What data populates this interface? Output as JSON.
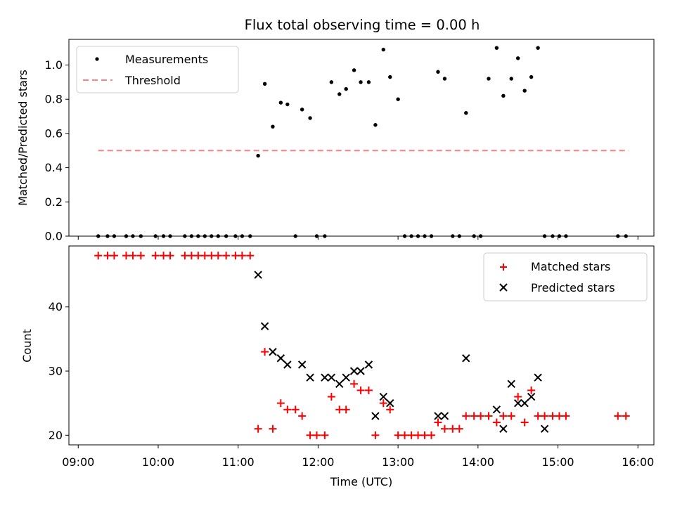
{
  "chart_data": [
    {
      "type": "scatter",
      "title": "Flux total observing time = 0.00 h",
      "xlabel": "",
      "ylabel": "Matched/Predicted stars",
      "ylim": [
        0.0,
        1.15
      ],
      "yticks": [
        0.0,
        0.2,
        0.4,
        0.6,
        0.8,
        1.0
      ],
      "ytick_labels": [
        "0.0",
        "0.2",
        "0.4",
        "0.6",
        "0.8",
        "1.0"
      ],
      "legend": {
        "placement": "top-left",
        "entries": [
          {
            "label": "Measurements",
            "marker": "dot",
            "color": "#000000"
          },
          {
            "label": "Threshold",
            "marker": "dashed-line",
            "color": "#ff7f7f"
          }
        ]
      },
      "threshold": {
        "value": 0.5,
        "x_start": "09:15",
        "x_end": "15:53",
        "color": "#ff8080"
      },
      "series": [
        {
          "name": "Measurements",
          "color": "#000000",
          "x": [
            "09:15",
            "09:22",
            "09:27",
            "09:36",
            "09:41",
            "09:47",
            "09:58",
            "10:04",
            "10:09",
            "10:20",
            "10:25",
            "10:30",
            "10:35",
            "10:40",
            "10:45",
            "10:51",
            "10:58",
            "11:03",
            "11:09",
            "11:15",
            "11:20",
            "11:26",
            "11:32",
            "11:37",
            "11:43",
            "11:48",
            "11:54",
            "11:59",
            "12:05",
            "12:10",
            "12:16",
            "12:21",
            "12:27",
            "12:32",
            "12:38",
            "12:43",
            "12:49",
            "12:54",
            "13:00",
            "13:05",
            "13:10",
            "13:15",
            "13:20",
            "13:25",
            "13:30",
            "13:35",
            "13:41",
            "13:46",
            "13:51",
            "13:57",
            "14:02",
            "14:08",
            "14:14",
            "14:19",
            "14:25",
            "14:30",
            "14:35",
            "14:40",
            "14:45",
            "14:50",
            "14:56",
            "15:01",
            "15:06",
            "15:45",
            "15:51"
          ],
          "values": [
            0,
            0,
            0,
            0,
            0,
            0,
            0,
            0,
            0,
            0,
            0,
            0,
            0,
            0,
            0,
            0,
            0,
            0,
            0,
            0.47,
            0.89,
            0.64,
            0.78,
            0.77,
            0,
            0.74,
            0.69,
            0,
            0,
            0.9,
            0.83,
            0.86,
            0.97,
            0.9,
            0.9,
            0.65,
            1.09,
            0.93,
            0.8,
            0,
            0,
            0,
            0,
            0,
            0.96,
            0.92,
            0,
            0,
            0.72,
            0,
            0,
            0.92,
            1.1,
            0.82,
            0.92,
            1.04,
            0.85,
            0.93,
            1.1,
            0,
            0,
            0,
            0,
            0,
            0
          ]
        }
      ]
    },
    {
      "type": "scatter",
      "title": "",
      "xlabel": "Time (UTC)",
      "ylabel": "Count",
      "xlim": [
        "08:53",
        "16:12"
      ],
      "xticks": [
        "09:00",
        "10:00",
        "11:00",
        "12:00",
        "13:00",
        "14:00",
        "15:00",
        "16:00"
      ],
      "ylim": [
        18.5,
        49.5
      ],
      "yticks": [
        20,
        30,
        40
      ],
      "ytick_labels": [
        "20",
        "30",
        "40"
      ],
      "legend": {
        "placement": "top-right",
        "entries": [
          {
            "label": "Matched stars",
            "marker": "plus",
            "color": "#ff0000"
          },
          {
            "label": "Predicted stars",
            "marker": "x",
            "color": "#000000"
          }
        ]
      },
      "series": [
        {
          "name": "Matched stars",
          "color": "#ff0000",
          "x": [
            "09:15",
            "09:22",
            "09:27",
            "09:36",
            "09:41",
            "09:47",
            "09:58",
            "10:04",
            "10:09",
            "10:20",
            "10:25",
            "10:30",
            "10:35",
            "10:40",
            "10:45",
            "10:51",
            "10:58",
            "11:03",
            "11:09",
            "11:15",
            "11:20",
            "11:26",
            "11:32",
            "11:37",
            "11:43",
            "11:48",
            "11:54",
            "11:59",
            "12:05",
            "12:10",
            "12:16",
            "12:21",
            "12:27",
            "12:32",
            "12:38",
            "12:43",
            "12:49",
            "12:54",
            "13:00",
            "13:05",
            "13:10",
            "13:15",
            "13:20",
            "13:25",
            "13:30",
            "13:35",
            "13:41",
            "13:46",
            "13:51",
            "13:57",
            "14:02",
            "14:08",
            "14:14",
            "14:19",
            "14:25",
            "14:30",
            "14:35",
            "14:40",
            "14:45",
            "14:50",
            "14:56",
            "15:01",
            "15:06",
            "15:45",
            "15:51"
          ],
          "values": [
            48,
            48,
            48,
            48,
            48,
            48,
            48,
            48,
            48,
            48,
            48,
            48,
            48,
            48,
            48,
            48,
            48,
            48,
            48,
            21,
            33,
            21,
            25,
            24,
            24,
            23,
            20,
            20,
            20,
            26,
            24,
            24,
            28,
            27,
            27,
            20,
            25,
            24,
            20,
            20,
            20,
            20,
            20,
            20,
            22,
            21,
            21,
            21,
            23,
            23,
            23,
            23,
            22,
            23,
            23,
            26,
            22,
            27,
            23,
            23,
            23,
            23,
            23,
            23,
            23
          ]
        },
        {
          "name": "Predicted stars",
          "color": "#000000",
          "x": [
            "11:15",
            "11:20",
            "11:26",
            "11:32",
            "11:37",
            "11:48",
            "11:54",
            "12:05",
            "12:10",
            "12:16",
            "12:21",
            "12:27",
            "12:32",
            "12:38",
            "12:43",
            "12:49",
            "12:54",
            "13:30",
            "13:35",
            "13:51",
            "14:14",
            "14:19",
            "14:25",
            "14:30",
            "14:35",
            "14:40",
            "14:45",
            "14:50"
          ],
          "values": [
            45,
            37,
            33,
            32,
            31,
            31,
            29,
            29,
            29,
            28,
            29,
            30,
            30,
            31,
            23,
            26,
            25,
            23,
            23,
            32,
            24,
            21,
            28,
            25,
            25,
            26,
            29,
            21
          ]
        }
      ]
    }
  ]
}
